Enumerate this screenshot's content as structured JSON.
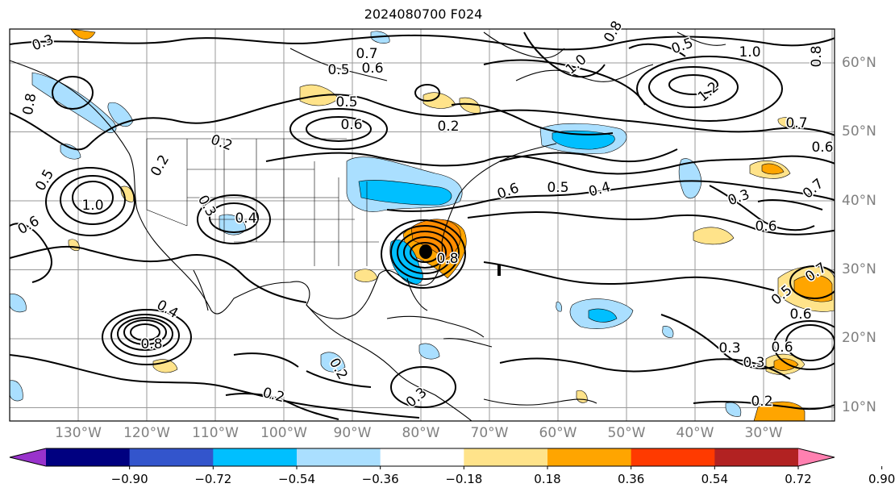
{
  "title": "2024080700 F024",
  "longitude_labels": [
    "130°W",
    "120°W",
    "110°W",
    "100°W",
    "90°W",
    "80°W",
    "70°W",
    "60°W",
    "50°W",
    "40°W",
    "30°W"
  ],
  "latitude_labels": [
    "60°N",
    "50°N",
    "40°N",
    "30°N",
    "20°N",
    "10°N"
  ],
  "colorbar": {
    "tick_labels": [
      "−0.90",
      "−0.72",
      "−0.54",
      "−0.36",
      "−0.18",
      "0.18",
      "0.36",
      "0.54",
      "0.72",
      "0.90"
    ],
    "colors": [
      "#9933cc",
      "#000080",
      "#3355cc",
      "#00bfff",
      "#aadfff",
      "#ffffff",
      "#ffe38a",
      "#ffa500",
      "#ff3a00",
      "#b22222",
      "#ff80b0"
    ]
  },
  "contour_labels": [
    "0.3",
    "0.7",
    "0.5",
    "0.6",
    "0.5",
    "1.0",
    "0.8",
    "0.5",
    "1.0",
    "1.2",
    "0.2",
    "0.6",
    "0.7",
    "0.2",
    "0.2",
    "0.5",
    "0.8",
    "0.6",
    "1.0",
    "0.3",
    "0.4",
    "0.6",
    "0.5",
    "0.4",
    "0.3",
    "0.6",
    "0.7",
    "0.6",
    "0.5",
    "0.7",
    "0.6",
    "0.3",
    "0.3",
    "0.6",
    "0.8",
    "0.4",
    "0.8",
    "0.2",
    "0.2",
    "0.3",
    "0.2",
    "0.8"
  ],
  "marker": {
    "name": "storm-center",
    "lon": -81,
    "lat": 32.5
  }
}
